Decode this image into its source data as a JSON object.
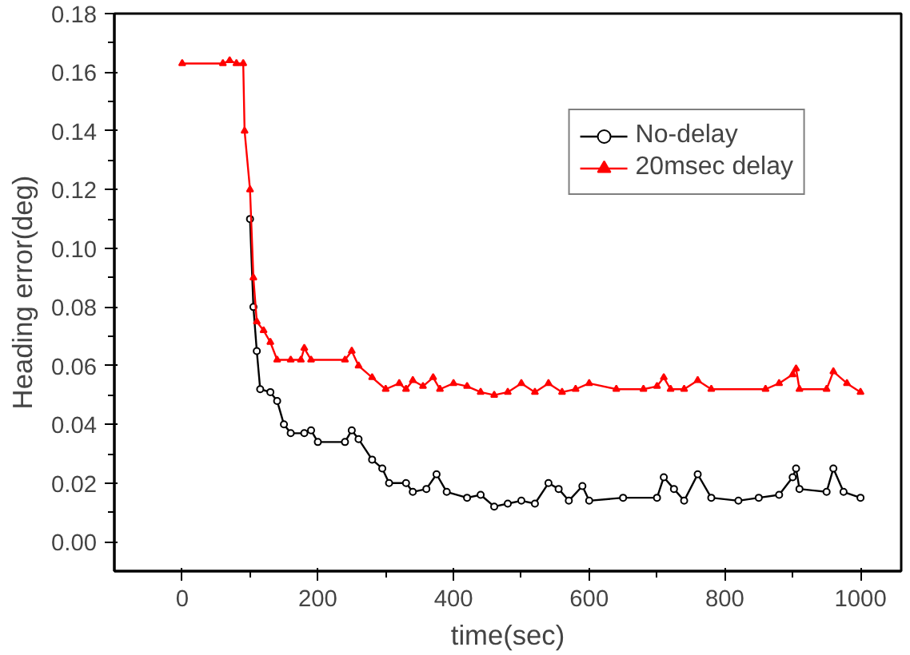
{
  "chart_data": {
    "type": "line",
    "xlabel": "time(sec)",
    "ylabel": "Heading error(deg)",
    "xlim": [
      -100,
      1060
    ],
    "ylim": [
      -0.01,
      0.18
    ],
    "xticks": [
      0,
      200,
      400,
      600,
      800,
      1000
    ],
    "yticks": [
      {
        "value": 0,
        "label": "0.00"
      },
      {
        "value": 0.02,
        "label": "0.02"
      },
      {
        "value": 0.04,
        "label": "0.04"
      },
      {
        "value": 0.06,
        "label": "0.06"
      },
      {
        "value": 0.08,
        "label": "0.08"
      },
      {
        "value": 0.1,
        "label": "0.10"
      },
      {
        "value": 0.12,
        "label": "0.12"
      },
      {
        "value": 0.14,
        "label": "0.14"
      },
      {
        "value": 0.16,
        "label": "0.16"
      },
      {
        "value": 0.18,
        "label": "0.18"
      }
    ],
    "grid": false,
    "legend": "top right",
    "series": [
      {
        "name": "No-delay",
        "color": "#000000",
        "marker": "circle",
        "x": [
          100,
          105,
          110,
          115,
          130,
          140,
          150,
          160,
          180,
          190,
          200,
          240,
          250,
          260,
          280,
          295,
          305,
          330,
          340,
          360,
          375,
          390,
          420,
          440,
          460,
          480,
          500,
          520,
          540,
          555,
          570,
          590,
          600,
          650,
          700,
          710,
          725,
          740,
          760,
          780,
          820,
          850,
          880,
          900,
          905,
          910,
          950,
          960,
          975,
          1000
        ],
        "values": [
          0.11,
          0.08,
          0.065,
          0.052,
          0.051,
          0.048,
          0.04,
          0.037,
          0.037,
          0.038,
          0.034,
          0.034,
          0.038,
          0.035,
          0.028,
          0.025,
          0.02,
          0.02,
          0.017,
          0.018,
          0.023,
          0.017,
          0.015,
          0.016,
          0.012,
          0.013,
          0.014,
          0.013,
          0.02,
          0.018,
          0.014,
          0.019,
          0.014,
          0.015,
          0.015,
          0.022,
          0.018,
          0.014,
          0.023,
          0.015,
          0.014,
          0.015,
          0.016,
          0.022,
          0.025,
          0.018,
          0.017,
          0.025,
          0.017,
          0.015
        ]
      },
      {
        "name": "20msec delay",
        "color": "#ff0000",
        "marker": "triangle",
        "x": [
          0,
          60,
          70,
          80,
          90,
          92,
          100,
          105,
          110,
          120,
          130,
          140,
          160,
          175,
          180,
          190,
          240,
          250,
          260,
          280,
          300,
          320,
          330,
          340,
          355,
          370,
          380,
          400,
          420,
          440,
          460,
          480,
          500,
          520,
          540,
          560,
          580,
          600,
          640,
          680,
          700,
          710,
          720,
          740,
          760,
          780,
          860,
          880,
          900,
          905,
          910,
          950,
          960,
          980,
          1000
        ],
        "values": [
          0.163,
          0.163,
          0.164,
          0.163,
          0.163,
          0.14,
          0.12,
          0.09,
          0.075,
          0.072,
          0.068,
          0.062,
          0.062,
          0.062,
          0.066,
          0.062,
          0.062,
          0.065,
          0.06,
          0.056,
          0.052,
          0.054,
          0.052,
          0.055,
          0.053,
          0.056,
          0.052,
          0.054,
          0.053,
          0.051,
          0.05,
          0.051,
          0.054,
          0.051,
          0.054,
          0.051,
          0.052,
          0.054,
          0.052,
          0.052,
          0.053,
          0.056,
          0.052,
          0.052,
          0.055,
          0.052,
          0.052,
          0.054,
          0.057,
          0.059,
          0.052,
          0.052,
          0.058,
          0.054,
          0.051
        ]
      }
    ]
  }
}
